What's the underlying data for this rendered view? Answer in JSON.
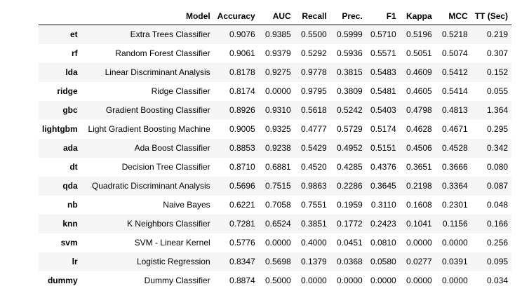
{
  "columns": [
    "",
    "Model",
    "Accuracy",
    "AUC",
    "Recall",
    "Prec.",
    "F1",
    "Kappa",
    "MCC",
    "TT (Sec)"
  ],
  "rows": [
    {
      "id": "et",
      "model": "Extra Trees Classifier",
      "values": [
        "0.9076",
        "0.9385",
        "0.5500",
        "0.5999",
        "0.5710",
        "0.5196",
        "0.5218",
        "0.219"
      ]
    },
    {
      "id": "rf",
      "model": "Random Forest Classifier",
      "values": [
        "0.9061",
        "0.9379",
        "0.5292",
        "0.5936",
        "0.5571",
        "0.5051",
        "0.5074",
        "0.307"
      ]
    },
    {
      "id": "lda",
      "model": "Linear Discriminant Analysis",
      "values": [
        "0.8178",
        "0.9275",
        "0.9778",
        "0.3815",
        "0.5483",
        "0.4609",
        "0.5412",
        "0.152"
      ]
    },
    {
      "id": "ridge",
      "model": "Ridge Classifier",
      "values": [
        "0.8174",
        "0.0000",
        "0.9795",
        "0.3809",
        "0.5481",
        "0.4605",
        "0.5414",
        "0.055"
      ]
    },
    {
      "id": "gbc",
      "model": "Gradient Boosting Classifier",
      "values": [
        "0.8926",
        "0.9310",
        "0.5618",
        "0.5242",
        "0.5403",
        "0.4798",
        "0.4813",
        "1.364"
      ]
    },
    {
      "id": "lightgbm",
      "model": "Light Gradient Boosting Machine",
      "values": [
        "0.9005",
        "0.9325",
        "0.4777",
        "0.5729",
        "0.5174",
        "0.4628",
        "0.4671",
        "0.295"
      ]
    },
    {
      "id": "ada",
      "model": "Ada Boost Classifier",
      "values": [
        "0.8853",
        "0.9238",
        "0.5429",
        "0.4952",
        "0.5151",
        "0.4506",
        "0.4528",
        "0.342"
      ]
    },
    {
      "id": "dt",
      "model": "Decision Tree Classifier",
      "values": [
        "0.8710",
        "0.6881",
        "0.4520",
        "0.4285",
        "0.4376",
        "0.3651",
        "0.3666",
        "0.080"
      ]
    },
    {
      "id": "qda",
      "model": "Quadratic Discriminant Analysis",
      "values": [
        "0.5696",
        "0.7515",
        "0.9863",
        "0.2286",
        "0.3645",
        "0.2198",
        "0.3364",
        "0.087"
      ]
    },
    {
      "id": "nb",
      "model": "Naive Bayes",
      "values": [
        "0.6221",
        "0.7058",
        "0.7551",
        "0.1959",
        "0.3110",
        "0.1608",
        "0.2301",
        "0.048"
      ]
    },
    {
      "id": "knn",
      "model": "K Neighbors Classifier",
      "values": [
        "0.7281",
        "0.6524",
        "0.3851",
        "0.1772",
        "0.2423",
        "0.1041",
        "0.1156",
        "0.166"
      ]
    },
    {
      "id": "svm",
      "model": "SVM - Linear Kernel",
      "values": [
        "0.5776",
        "0.0000",
        "0.4000",
        "0.0451",
        "0.0810",
        "0.0000",
        "0.0000",
        "0.256"
      ]
    },
    {
      "id": "lr",
      "model": "Logistic Regression",
      "values": [
        "0.8347",
        "0.5698",
        "0.1379",
        "0.0368",
        "0.0580",
        "0.0277",
        "0.0391",
        "0.095"
      ]
    },
    {
      "id": "dummy",
      "model": "Dummy Classifier",
      "values": [
        "0.8874",
        "0.5000",
        "0.0000",
        "0.0000",
        "0.0000",
        "0.0000",
        "0.0000",
        "0.034"
      ]
    }
  ],
  "colors": {
    "stripe": "#f5f5f5",
    "background": "#ffffff",
    "text": "#000000"
  }
}
